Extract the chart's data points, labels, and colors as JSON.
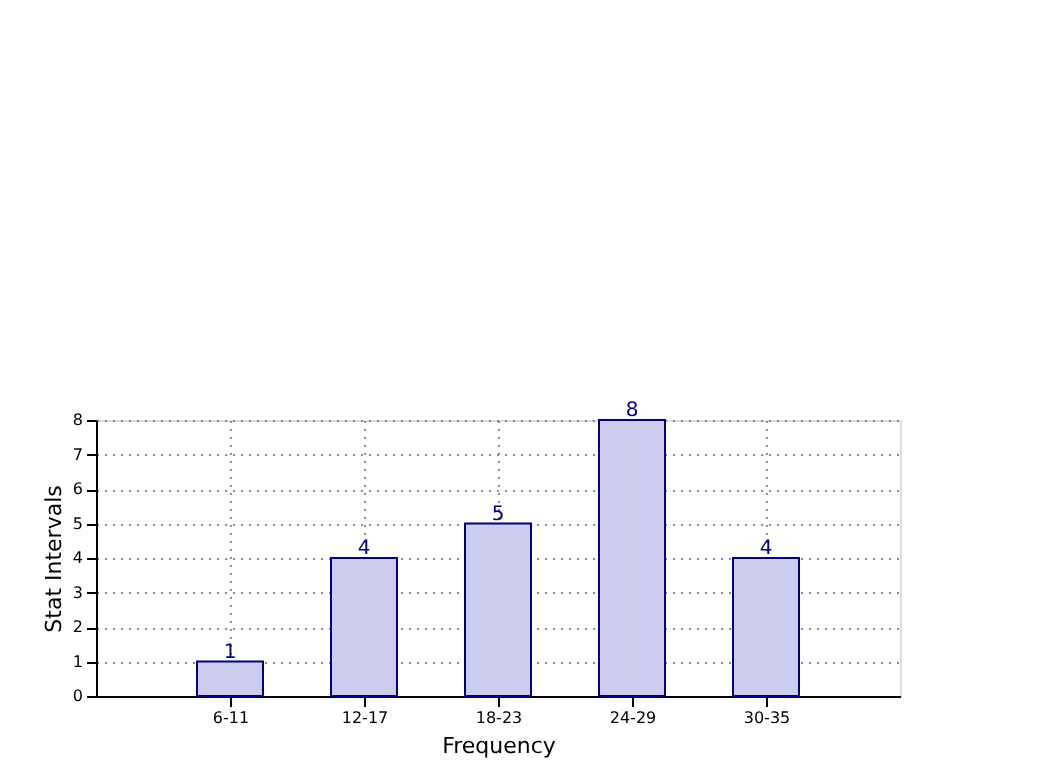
{
  "chart_data": {
    "type": "bar",
    "xlabel": "Frequency",
    "ylabel": "Stat Intervals",
    "categories": [
      "6-11",
      "12-17",
      "18-23",
      "24-29",
      "30-35"
    ],
    "values": [
      1,
      4,
      5,
      8,
      4
    ],
    "color": "#ccccee",
    "ylim": [
      0,
      8
    ],
    "yticks": [
      0,
      1,
      2,
      3,
      4,
      5,
      6,
      7,
      8
    ],
    "grid": true,
    "data_labels": true
  }
}
